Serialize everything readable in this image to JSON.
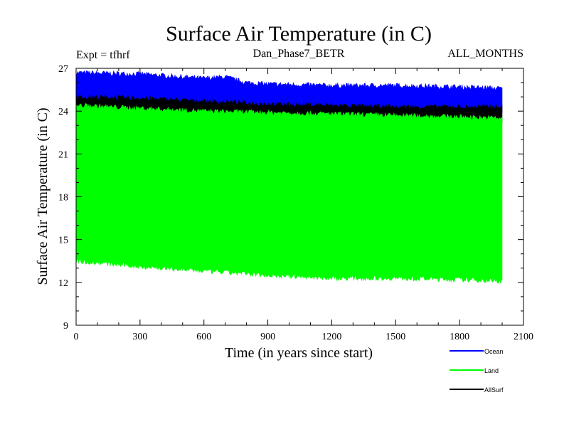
{
  "chart_data": {
    "type": "area",
    "title": "Surface Air Temperature (in C)",
    "subtitle_left": "Expt = tfhrf",
    "subtitle_center": "Dan_Phase7_BETR",
    "subtitle_right": "ALL_MONTHS",
    "xlabel": "Time (in years since start)",
    "ylabel": "Surface Air Temperature (in C)",
    "xlim": [
      0,
      2100
    ],
    "ylim": [
      9,
      27
    ],
    "xticks": [
      "0",
      "300",
      "600",
      "900",
      "1200",
      "1500",
      "1800",
      "2100"
    ],
    "yticks": [
      "9",
      "12",
      "15",
      "18",
      "21",
      "24",
      "27"
    ],
    "legend_position": "bottom-right",
    "series": [
      {
        "name": "Ocean",
        "color": "#0000ff",
        "x": [
          0,
          300,
          600,
          700,
          800,
          900,
          1200,
          1500,
          1800,
          2000
        ],
        "upper": [
          26.7,
          26.6,
          26.3,
          26.4,
          26.0,
          25.9,
          25.8,
          25.8,
          25.7,
          25.6
        ],
        "lower": [
          24.5,
          24.5,
          24.4,
          24.4,
          24.3,
          24.2,
          24.1,
          24.0,
          24.0,
          24.0
        ]
      },
      {
        "name": "AllSurf",
        "color": "#000000",
        "x": [
          0,
          300,
          600,
          900,
          1200,
          1500,
          1800,
          2000
        ],
        "upper": [
          25.0,
          24.9,
          24.7,
          24.5,
          24.4,
          24.3,
          24.3,
          24.3
        ],
        "lower": [
          23.9,
          23.8,
          23.7,
          23.5,
          23.4,
          23.3,
          23.3,
          23.2
        ]
      },
      {
        "name": "Land",
        "color": "#00ff00",
        "x": [
          0,
          300,
          600,
          900,
          1200,
          1500,
          1800,
          2000
        ],
        "upper": [
          24.4,
          24.2,
          24.0,
          23.9,
          23.8,
          23.7,
          23.6,
          23.5
        ],
        "lower": [
          13.5,
          13.1,
          12.8,
          12.5,
          12.3,
          12.3,
          12.2,
          12.1
        ]
      }
    ]
  }
}
